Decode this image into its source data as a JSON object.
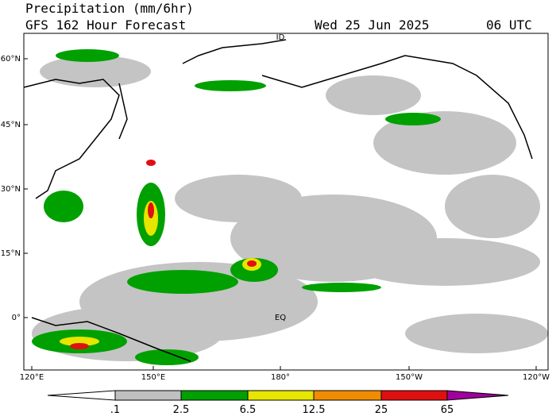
{
  "header": {
    "title": "Precipitation (mm/6hr)",
    "subtitle": "GFS 162 Hour Forecast",
    "date": "Wed 25 Jun 2025",
    "time": "06 UTC"
  },
  "map": {
    "lat_labels": [
      "60°N",
      "45°N",
      "30°N",
      "15°N",
      "0°"
    ],
    "lon_labels": [
      "120°E",
      "150°E",
      "180°",
      "150°W",
      "120°W"
    ],
    "annotations": [
      "EQ",
      "ID"
    ]
  },
  "colorbar": {
    "labels": [
      ".1",
      "2.5",
      "6.5",
      "12.5",
      "25",
      "65"
    ],
    "colors": [
      "#ffffff",
      "#c0c0c0",
      "#00a000",
      "#e6e600",
      "#f08c00",
      "#e01010",
      "#a0009c"
    ]
  }
}
